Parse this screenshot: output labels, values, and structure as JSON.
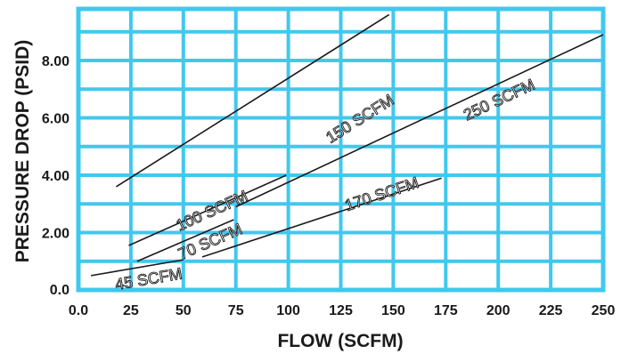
{
  "chart_data": {
    "type": "line",
    "xlabel": "FLOW (SCFM)",
    "ylabel": "PRESSURE DROP (PSID)",
    "xlim": [
      0,
      250
    ],
    "ylim": [
      0,
      9.8
    ],
    "x_ticks": [
      "0.0",
      "25",
      "50",
      "75",
      "100",
      "125",
      "150",
      "175",
      "200",
      "225",
      "250"
    ],
    "y_ticks": [
      {
        "value": 0,
        "label": "0.0"
      },
      {
        "value": 2,
        "label": "2.00"
      },
      {
        "value": 4,
        "label": "4.00"
      },
      {
        "value": 6,
        "label": "6.00"
      },
      {
        "value": 8,
        "label": "8.00"
      }
    ],
    "grid": true,
    "series": [
      {
        "name": "150 SCFM",
        "x": [
          18,
          148
        ],
        "y": [
          3.6,
          9.6
        ]
      },
      {
        "name": "250 SCFM",
        "x": [
          75,
          250
        ],
        "y": [
          2.9,
          8.9
        ]
      },
      {
        "name": "100 SCFM",
        "x": [
          24,
          99
        ],
        "y": [
          1.55,
          4.0
        ]
      },
      {
        "name": "170 SCFM",
        "x": [
          59,
          173
        ],
        "y": [
          1.15,
          3.9
        ]
      },
      {
        "name": "70 SCFM",
        "x": [
          28,
          74
        ],
        "y": [
          1.0,
          2.45
        ]
      },
      {
        "name": "45 SCFM",
        "x": [
          6,
          50
        ],
        "y": [
          0.5,
          1.05
        ]
      }
    ]
  }
}
